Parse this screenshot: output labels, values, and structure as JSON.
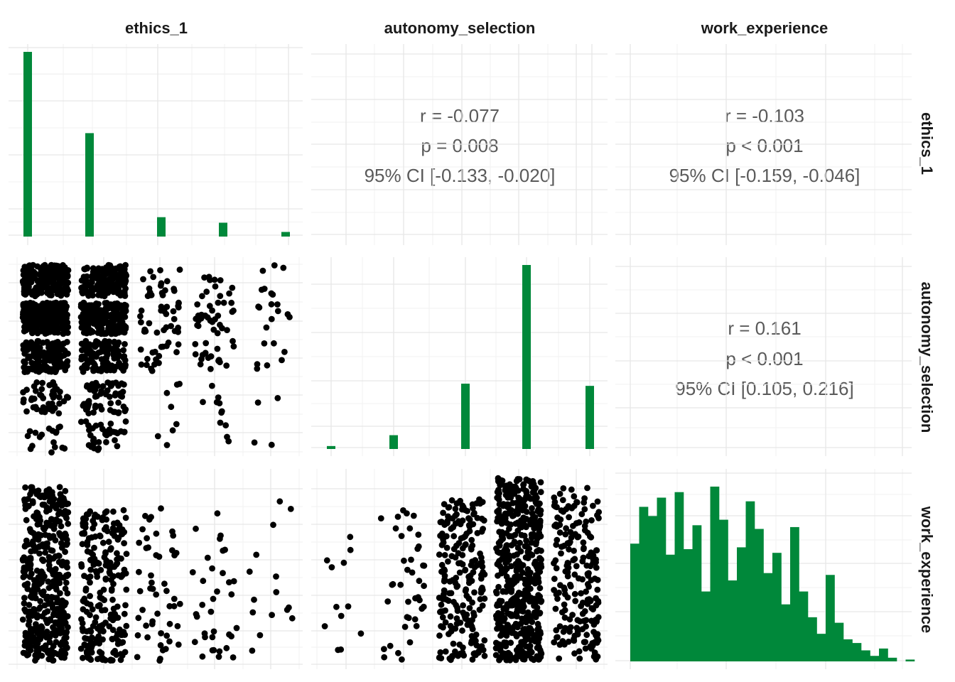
{
  "chart_data": {
    "type": "pairs",
    "variables": [
      "ethics_1",
      "autonomy_selection",
      "work_experience"
    ],
    "colors": {
      "bar": "#00883A",
      "point": "#000000"
    },
    "diagonal": [
      {
        "variable": "ethics_1",
        "type": "bar",
        "x": [
          1,
          2,
          3,
          4,
          5
        ],
        "counts": [
          100,
          56,
          10.5,
          7.5,
          2.5
        ],
        "ylim": [
          0,
          100
        ]
      },
      {
        "variable": "autonomy_selection",
        "type": "bar",
        "x": [
          1,
          2,
          3,
          4,
          5
        ],
        "counts": [
          1.6,
          7.5,
          35.5,
          100,
          34.3
        ],
        "ylim": [
          0,
          100
        ]
      },
      {
        "variable": "work_experience",
        "type": "histogram",
        "bin_heights": [
          64,
          84,
          79,
          89,
          58,
          92,
          61,
          74,
          38,
          95,
          77,
          44,
          62,
          87,
          72,
          48,
          59,
          31,
          73,
          38,
          24,
          15,
          47,
          21,
          12,
          10,
          6,
          3,
          7,
          2,
          0,
          1
        ],
        "ylim": [
          0,
          100
        ]
      }
    ],
    "correlations": [
      {
        "row": "ethics_1",
        "col": "autonomy_selection",
        "r_label": "r = -0.077",
        "p_label": "p = 0.008",
        "ci_label": "95% CI [-0.133, -0.020]"
      },
      {
        "row": "ethics_1",
        "col": "work_experience",
        "r_label": "r = -0.103",
        "p_label": "p < 0.001",
        "ci_label": "95% CI [-0.159, -0.046]"
      },
      {
        "row": "autonomy_selection",
        "col": "work_experience",
        "r_label": "r = 0.161",
        "p_label": "p < 0.001",
        "ci_label": "95% CI [0.105, 0.216]"
      }
    ],
    "scatter": [
      {
        "x": "ethics_1",
        "y": "autonomy_selection",
        "jitter": true,
        "x_levels": [
          1,
          2,
          3,
          4,
          5
        ],
        "y_levels": [
          1,
          2,
          3,
          4,
          5
        ],
        "cell_density": [
          [
            3,
            8,
            25,
            45,
            40
          ],
          [
            6,
            10,
            20,
            35,
            28
          ],
          [
            2,
            2,
            8,
            12,
            8
          ],
          [
            2,
            3,
            8,
            12,
            5
          ],
          [
            1,
            1,
            3,
            4,
            3
          ]
        ]
      },
      {
        "x": "ethics_1",
        "y": "work_experience",
        "jitter": true,
        "x_levels": [
          1,
          2,
          3,
          4,
          5
        ],
        "point_counts": [
          420,
          230,
          50,
          35,
          15
        ]
      },
      {
        "x": "autonomy_selection",
        "y": "work_experience",
        "jitter": true,
        "x_levels": [
          1,
          2,
          3,
          4,
          5
        ],
        "point_counts": [
          12,
          40,
          220,
          520,
          200
        ]
      }
    ]
  }
}
